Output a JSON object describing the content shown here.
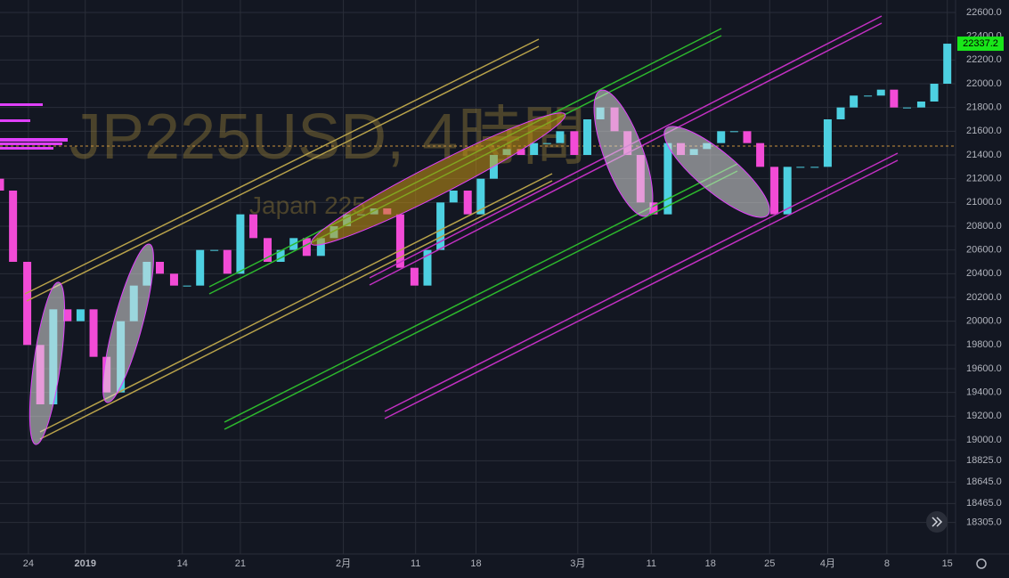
{
  "chart_data": {
    "type": "candlestick",
    "title": "JP225USD, 4時間",
    "subtitle": "Japan 225",
    "up_color": "#4dd0e1",
    "down_color": "#f24bd6",
    "grid": true,
    "xlim": [
      -2.4,
      78.3
    ],
    "ylim": [
      18040,
      22705
    ],
    "last_price": 22337.2,
    "last_price_color": "#19e619",
    "xticks": [
      {
        "value": 0,
        "label": "24"
      },
      {
        "value": 4.8,
        "label": "2019"
      },
      {
        "value": 13,
        "label": "14"
      },
      {
        "value": 17.9,
        "label": "21"
      },
      {
        "value": 26.6,
        "label": "2月"
      },
      {
        "value": 32.7,
        "label": "11"
      },
      {
        "value": 37.8,
        "label": "18"
      },
      {
        "value": 46.4,
        "label": "3月"
      },
      {
        "value": 52.6,
        "label": "11"
      },
      {
        "value": 57.6,
        "label": "18"
      },
      {
        "value": 62.6,
        "label": "25"
      },
      {
        "value": 67.5,
        "label": "4月"
      },
      {
        "value": 72.5,
        "label": "8"
      },
      {
        "value": 77.6,
        "label": "15"
      }
    ],
    "yticks": [
      {
        "value": 22600,
        "label": "22600.0"
      },
      {
        "value": 22400,
        "label": "22400.0"
      },
      {
        "value": 22200,
        "label": "22200.0"
      },
      {
        "value": 22000,
        "label": "22000.0"
      },
      {
        "value": 21800,
        "label": "21800.0"
      },
      {
        "value": 21600,
        "label": "21600.0"
      },
      {
        "value": 21400,
        "label": "21400.0"
      },
      {
        "value": 21200,
        "label": "21200.0"
      },
      {
        "value": 21000,
        "label": "21000.0"
      },
      {
        "value": 20800,
        "label": "20800.0"
      },
      {
        "value": 20600,
        "label": "20600.0"
      },
      {
        "value": 20400,
        "label": "20400.0"
      },
      {
        "value": 20200,
        "label": "20200.0"
      },
      {
        "value": 20000,
        "label": "20000.0"
      },
      {
        "value": 19800,
        "label": "19800.0"
      },
      {
        "value": 19600,
        "label": "19600.0"
      },
      {
        "value": 19400,
        "label": "19400.0"
      },
      {
        "value": 19200,
        "label": "19200.0"
      },
      {
        "value": 19000,
        "label": "19000.0"
      },
      {
        "value": 18825,
        "label": "18825.0"
      },
      {
        "value": 18645,
        "label": "18645.0"
      },
      {
        "value": 18465,
        "label": "18465.0"
      },
      {
        "value": 18305,
        "label": "18305.0"
      }
    ],
    "x": [
      -2.4,
      -1.3,
      -0.1,
      1.0,
      2.1,
      3.3,
      4.4,
      5.5,
      6.6,
      7.8,
      8.9,
      10.0,
      11.1,
      12.3,
      13.4,
      14.5,
      15.7,
      16.8,
      17.9,
      19.0,
      20.2,
      21.3,
      22.4,
      23.5,
      24.7,
      25.8,
      26.9,
      28.1,
      29.2,
      30.3,
      31.4,
      32.6,
      33.7,
      34.8,
      35.9,
      37.1,
      38.2,
      39.3,
      40.4,
      41.6,
      42.7,
      43.8,
      44.9,
      46.1,
      47.2,
      48.3,
      49.5,
      50.6,
      51.7,
      52.8,
      54.0,
      55.1,
      56.2,
      57.3,
      58.5,
      59.6,
      60.7,
      61.8,
      63.0,
      64.1,
      65.2,
      66.4,
      67.5,
      68.6,
      69.7,
      70.9,
      72.0,
      73.1,
      74.2,
      75.4,
      76.5,
      77.6
    ],
    "open": [
      21200,
      21100,
      20500,
      19800,
      19300,
      20100,
      20000,
      20100,
      19700,
      19400,
      20000,
      20300,
      20500,
      20400,
      20300,
      20300,
      20600,
      20600,
      20400,
      20900,
      20700,
      20500,
      20600,
      20700,
      20550,
      20700,
      20800,
      20900,
      20900,
      20950,
      20900,
      20450,
      20300,
      20600,
      21000,
      21100,
      20900,
      21200,
      21400,
      21450,
      21400,
      21500,
      21500,
      21600,
      21400,
      21700,
      21800,
      21600,
      21400,
      21000,
      20900,
      21500,
      21400,
      21450,
      21500,
      21600,
      21600,
      21500,
      21300,
      20900,
      21300,
      21300,
      21300,
      21700,
      21800,
      21900,
      21900,
      21950,
      21800,
      21800,
      21850,
      22000
    ],
    "close": [
      21100,
      20500,
      19800,
      19300,
      20100,
      20000,
      20100,
      19700,
      19400,
      20000,
      20300,
      20500,
      20400,
      20300,
      20300,
      20600,
      20600,
      20400,
      20900,
      20700,
      20500,
      20600,
      20700,
      20550,
      20700,
      20800,
      20900,
      20900,
      20950,
      20900,
      20450,
      20300,
      20600,
      21000,
      21100,
      20900,
      21200,
      21400,
      21450,
      21400,
      21500,
      21500,
      21600,
      21400,
      21700,
      21800,
      21600,
      21400,
      21000,
      20900,
      21500,
      21400,
      21450,
      21500,
      21600,
      21600,
      21500,
      21300,
      20900,
      21300,
      21300,
      21300,
      21700,
      21800,
      21900,
      21900,
      21950,
      21800,
      21800,
      21850,
      22000,
      22337.2
    ]
  }
}
